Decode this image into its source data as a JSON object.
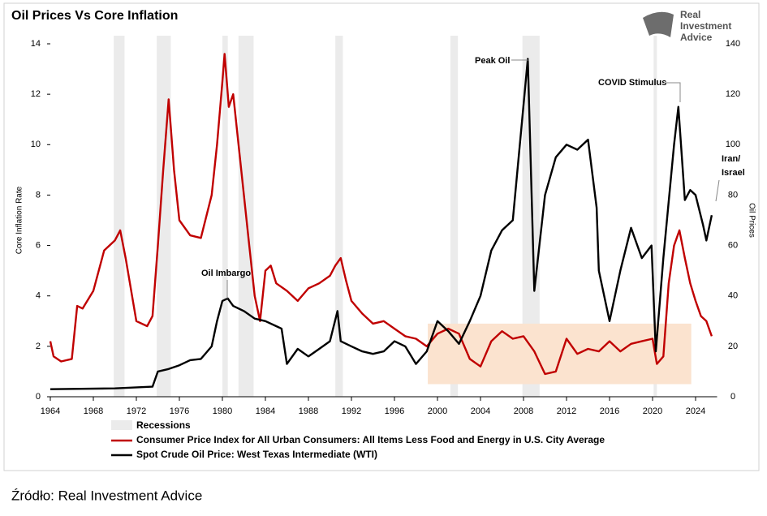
{
  "chart_data": {
    "type": "line",
    "title": "Oil Prices Vs Core Inflation",
    "y_label": "Core Inflation Rate",
    "y2_label": "Oil Prices",
    "xlim": [
      1964,
      2026
    ],
    "xticks": [
      1964,
      1968,
      1972,
      1976,
      1980,
      1984,
      1988,
      1992,
      1996,
      2000,
      2004,
      2008,
      2012,
      2016,
      2020,
      2024
    ],
    "ylim": [
      0,
      14
    ],
    "yticks": [
      0,
      2,
      4,
      6,
      8,
      10,
      12,
      14
    ],
    "y2lim": [
      0,
      140
    ],
    "y2ticks": [
      0,
      20,
      40,
      60,
      80,
      100,
      120,
      140
    ],
    "recessions_label": "Recessions",
    "recession_color": "#ebebeb",
    "recessions": [
      [
        1969.9,
        1970.9
      ],
      [
        1973.9,
        1975.2
      ],
      [
        1980.0,
        1980.5
      ],
      [
        1981.5,
        1982.9
      ],
      [
        1990.5,
        1991.2
      ],
      [
        2001.2,
        2001.9
      ],
      [
        2007.9,
        2009.5
      ],
      [
        2020.1,
        2020.4
      ]
    ],
    "highlight": {
      "x": [
        1999.1,
        2023.6
      ],
      "y": [
        0.5,
        2.9
      ],
      "color": "#fbe3cf"
    },
    "series": [
      {
        "name": "Consumer Price Index for All Urban Consumers: All Items Less Food and Energy in U.S. City Average",
        "color": "#c00000",
        "x": [
          1964,
          1964.3,
          1965,
          1966,
          1966.5,
          1967,
          1968,
          1969,
          1970,
          1970.5,
          1971,
          1972,
          1973,
          1973.5,
          1974,
          1974.5,
          1975,
          1975.5,
          1976,
          1977,
          1978,
          1979,
          1979.5,
          1980,
          1980.2,
          1980.6,
          1981,
          1981.5,
          1982,
          1982.5,
          1983,
          1983.5,
          1984,
          1984.5,
          1985,
          1986,
          1987,
          1988,
          1989,
          1990,
          1990.5,
          1991,
          1991.5,
          1992,
          1993,
          1994,
          1995,
          1996,
          1997,
          1998,
          1999,
          2000,
          2001,
          2002,
          2003,
          2004,
          2005,
          2006,
          2007,
          2008,
          2009,
          2010,
          2011,
          2012,
          2013,
          2014,
          2015,
          2016,
          2017,
          2018,
          2019,
          2020,
          2020.4,
          2021,
          2021.5,
          2022,
          2022.5,
          2023,
          2023.5,
          2024,
          2024.5,
          2025,
          2025.5
        ],
        "values": [
          2.2,
          1.6,
          1.4,
          1.5,
          3.6,
          3.5,
          4.2,
          5.8,
          6.2,
          6.6,
          5.5,
          3.0,
          2.8,
          3.2,
          6.0,
          9.0,
          11.8,
          9.0,
          7.0,
          6.4,
          6.3,
          8.0,
          10.0,
          12.5,
          13.6,
          11.5,
          12.0,
          10.0,
          8.0,
          6.0,
          4.0,
          3.0,
          5.0,
          5.2,
          4.5,
          4.2,
          3.8,
          4.3,
          4.5,
          4.8,
          5.2,
          5.5,
          4.6,
          3.8,
          3.3,
          2.9,
          3.0,
          2.7,
          2.4,
          2.3,
          2.0,
          2.5,
          2.7,
          2.5,
          1.5,
          1.2,
          2.2,
          2.6,
          2.3,
          2.4,
          1.8,
          0.9,
          1.0,
          2.3,
          1.7,
          1.9,
          1.8,
          2.2,
          1.8,
          2.1,
          2.2,
          2.3,
          1.3,
          1.6,
          4.5,
          6.0,
          6.6,
          5.5,
          4.5,
          3.8,
          3.2,
          3.0,
          2.4
        ]
      },
      {
        "name": "Spot Crude Oil Price: West Texas Intermediate (WTI)",
        "color": "#000000",
        "axis": "y2",
        "x": [
          1964,
          1970,
          1973.5,
          1974,
          1975,
          1976,
          1977,
          1978,
          1979,
          1979.5,
          1980,
          1980.5,
          1981,
          1982,
          1983,
          1984,
          1985,
          1985.5,
          1986,
          1987,
          1988,
          1989,
          1990,
          1990.7,
          1991,
          1992,
          1993,
          1994,
          1995,
          1996,
          1997,
          1998,
          1999,
          2000,
          2001,
          2002,
          2003,
          2004,
          2005,
          2006,
          2007,
          2008.4,
          2009,
          2010,
          2011,
          2012,
          2013,
          2014,
          2014.8,
          2015,
          2016,
          2017,
          2018,
          2019,
          2019.9,
          2020.3,
          2021,
          2022,
          2022.4,
          2023,
          2023.5,
          2024,
          2024.7,
          2025,
          2025.5
        ],
        "values": [
          3,
          3.3,
          4,
          10,
          11,
          12.5,
          14.5,
          15,
          20,
          30,
          38,
          39,
          36,
          34,
          31,
          30,
          28,
          27,
          13,
          19,
          16,
          19,
          22,
          34,
          22,
          20,
          18,
          17,
          18,
          22,
          20,
          13,
          18,
          30,
          26,
          21,
          30,
          40,
          58,
          66,
          70,
          134,
          42,
          80,
          95,
          100,
          98,
          102,
          75,
          50,
          30,
          50,
          67,
          55,
          60,
          18,
          55,
          100,
          115,
          78,
          82,
          80,
          68,
          62,
          72
        ]
      }
    ],
    "annotations": [
      {
        "lines": [
          "Oil Imbargo"
        ]
      },
      {
        "lines": [
          "Peak Oil"
        ]
      },
      {
        "lines": [
          "COVID Stimulus"
        ]
      },
      {
        "lines": [
          "Iran/",
          "Israel"
        ]
      }
    ]
  },
  "logo": [
    "Real",
    "Investment",
    "Advice"
  ],
  "source": "Źródło: Real Investment Advice"
}
